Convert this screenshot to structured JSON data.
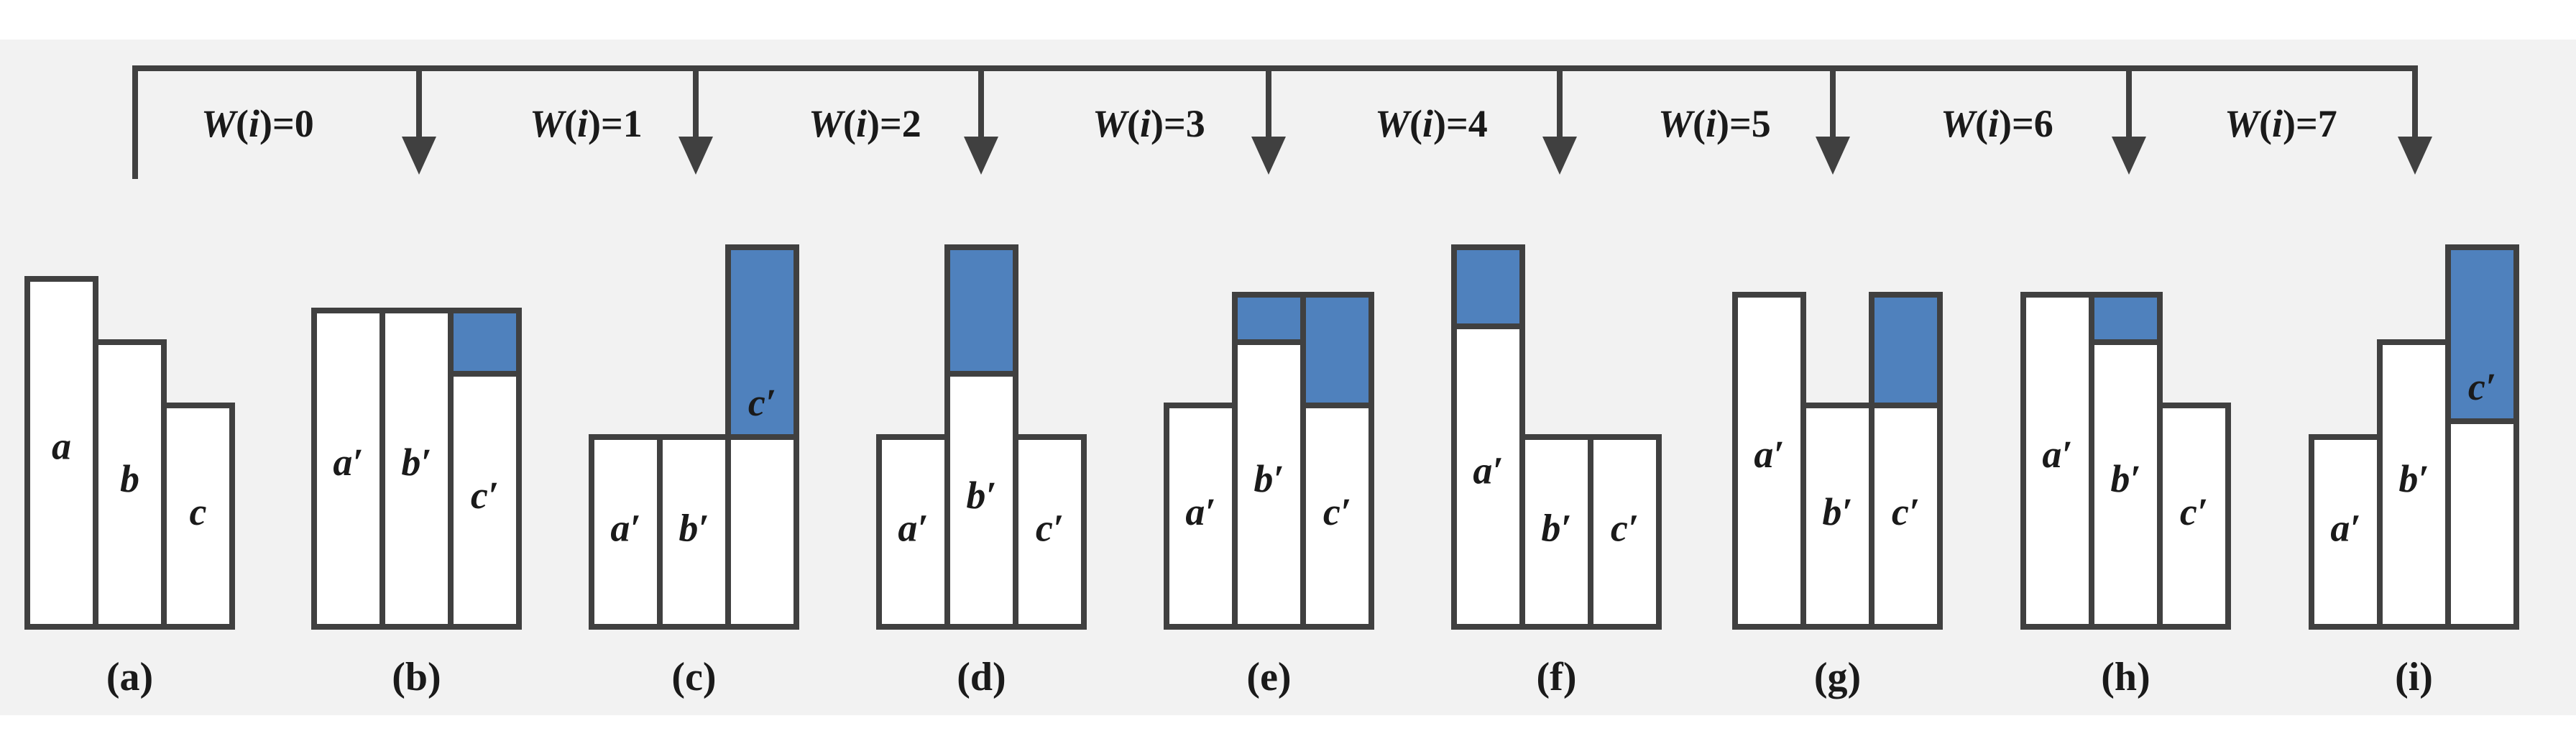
{
  "colors": {
    "background": "#f2f2f2",
    "stroke": "#404040",
    "fill_white": "#ffffff",
    "fill_blue": "#4f81bd"
  },
  "w_labels": [
    {
      "func": "W",
      "arg": "i",
      "value": "0"
    },
    {
      "func": "W",
      "arg": "i",
      "value": "1"
    },
    {
      "func": "W",
      "arg": "i",
      "value": "2"
    },
    {
      "func": "W",
      "arg": "i",
      "value": "3"
    },
    {
      "func": "W",
      "arg": "i",
      "value": "4"
    },
    {
      "func": "W",
      "arg": "i",
      "value": "5"
    },
    {
      "func": "W",
      "arg": "i",
      "value": "6"
    },
    {
      "func": "W",
      "arg": "i",
      "value": "7"
    }
  ],
  "panels": [
    {
      "label": "(a)",
      "bars": [
        {
          "name": "a",
          "height": 11,
          "blue": 0
        },
        {
          "name": "b",
          "height": 9,
          "blue": 0
        },
        {
          "name": "c",
          "height": 7,
          "blue": 0
        }
      ]
    },
    {
      "label": "(b)",
      "bars": [
        {
          "name": "a′",
          "height": 10,
          "blue": 0
        },
        {
          "name": "b′",
          "height": 10,
          "blue": 0
        },
        {
          "name": "c′",
          "height": 10,
          "blue": 2
        }
      ]
    },
    {
      "label": "(c)",
      "bars": [
        {
          "name": "a′",
          "height": 6,
          "blue": 0
        },
        {
          "name": "b′",
          "height": 6,
          "blue": 0
        },
        {
          "name": "c′",
          "height": 12,
          "blue": 6,
          "label_in_blue": true
        }
      ]
    },
    {
      "label": "(d)",
      "bars": [
        {
          "name": "a′",
          "height": 6,
          "blue": 0
        },
        {
          "name": "b′",
          "height": 12,
          "blue": 4
        },
        {
          "name": "c′",
          "height": 6,
          "blue": 0
        }
      ]
    },
    {
      "label": "(e)",
      "bars": [
        {
          "name": "a′",
          "height": 7,
          "blue": 0
        },
        {
          "name": "b′",
          "height": 10.5,
          "blue": 1.5
        },
        {
          "name": "c′",
          "height": 10.5,
          "blue": 3.5
        }
      ]
    },
    {
      "label": "(f)",
      "bars": [
        {
          "name": "a′",
          "height": 12,
          "blue": 2.5
        },
        {
          "name": "b′",
          "height": 6,
          "blue": 0
        },
        {
          "name": "c′",
          "height": 6,
          "blue": 0
        }
      ]
    },
    {
      "label": "(g)",
      "bars": [
        {
          "name": "a′",
          "height": 10.5,
          "blue": 0
        },
        {
          "name": "b′",
          "height": 7,
          "blue": 0
        },
        {
          "name": "c′",
          "height": 10.5,
          "blue": 3.5
        }
      ]
    },
    {
      "label": "(h)",
      "bars": [
        {
          "name": "a′",
          "height": 10.5,
          "blue": 0
        },
        {
          "name": "b′",
          "height": 10.5,
          "blue": 1.5
        },
        {
          "name": "c′",
          "height": 7,
          "blue": 0
        }
      ]
    },
    {
      "label": "(i)",
      "bars": [
        {
          "name": "a′",
          "height": 6,
          "blue": 0
        },
        {
          "name": "b′",
          "height": 9,
          "blue": 0
        },
        {
          "name": "c′",
          "height": 12,
          "blue": 5.5,
          "label_in_blue": true
        }
      ]
    }
  ]
}
